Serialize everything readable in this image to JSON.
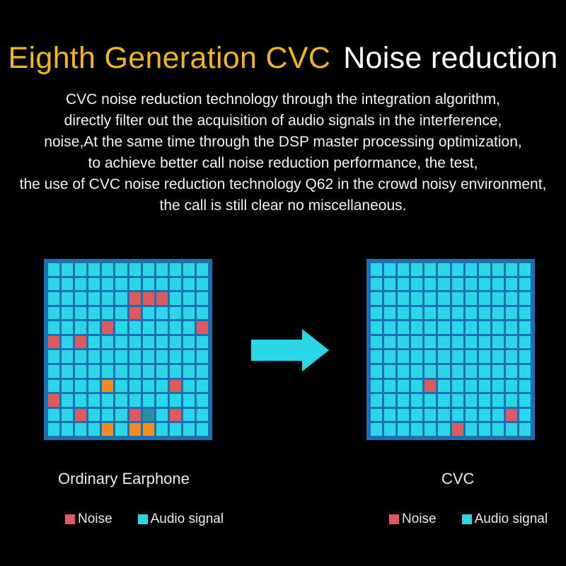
{
  "title": {
    "highlight": "Eighth Generation CVC",
    "rest": "Noise reduction",
    "highlight_color": "#f2b51c"
  },
  "description": [
    "CVC noise reduction technology through the integration algorithm,",
    "directly filter out the acquisition of audio signals in the interference,",
    "noise,At the same time through the DSP master processing optimization,",
    "to achieve better call noise reduction performance, the test,",
    "the use of CVC noise reduction technology Q62 in the crowd noisy environment,",
    "the call is still clear no miscellaneous."
  ],
  "left_panel": {
    "caption": "Ordinary Earphone",
    "legend": {
      "noise": "Noise",
      "audio": "Audio signal"
    }
  },
  "right_panel": {
    "caption": "CVC",
    "legend": {
      "noise": "Noise",
      "audio": "Audio signal"
    }
  },
  "colors": {
    "noise": "#dd5b5b",
    "audio": "#2ad6e8",
    "grid_border": "#1c6fb0",
    "arrow": "#2ad6e8"
  },
  "arrow_icon": "right-arrow-icon"
}
